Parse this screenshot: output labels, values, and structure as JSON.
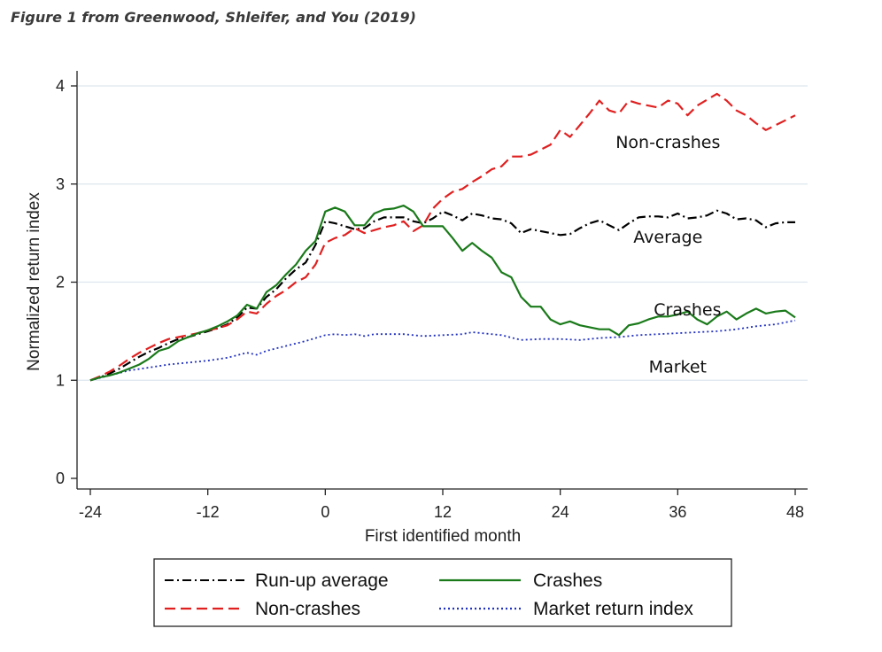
{
  "caption": "Figure 1 from Greenwood, Shleifer, and You (2019)",
  "chart_data": {
    "type": "line",
    "title": "",
    "xlabel": "First identified month",
    "ylabel": "Normalized return index",
    "xlim": [
      -24,
      48
    ],
    "ylim": [
      0,
      4
    ],
    "xticks": [
      -24,
      -12,
      0,
      12,
      24,
      36,
      48
    ],
    "yticks": [
      0,
      1,
      2,
      3,
      4
    ],
    "grid": "horizontal",
    "legend_position": "bottom",
    "annotations": [
      {
        "text": "Non-crashes",
        "x": 35,
        "y": 3.37
      },
      {
        "text": "Average",
        "x": 35,
        "y": 2.4
      },
      {
        "text": "Crashes",
        "x": 37,
        "y": 1.66
      },
      {
        "text": "Market",
        "x": 36,
        "y": 1.08
      }
    ],
    "series": [
      {
        "name": "Run-up average",
        "color": "#000000",
        "dash": "10,4,2,4",
        "x": [
          -24,
          -23,
          -22,
          -21,
          -20,
          -19,
          -18,
          -17,
          -16,
          -15,
          -14,
          -13,
          -12,
          -11,
          -10,
          -9,
          -8,
          -7,
          -6,
          -5,
          -4,
          -3,
          -2,
          -1,
          0,
          1,
          2,
          3,
          4,
          5,
          6,
          7,
          8,
          9,
          10,
          11,
          12,
          13,
          14,
          15,
          16,
          17,
          18,
          19,
          20,
          21,
          22,
          23,
          24,
          25,
          26,
          27,
          28,
          29,
          30,
          31,
          32,
          33,
          34,
          35,
          36,
          37,
          38,
          39,
          40,
          41,
          42,
          43,
          44,
          45,
          46,
          47,
          48
        ],
        "y": [
          1.0,
          1.03,
          1.07,
          1.12,
          1.18,
          1.24,
          1.29,
          1.33,
          1.38,
          1.42,
          1.44,
          1.47,
          1.5,
          1.53,
          1.57,
          1.64,
          1.74,
          1.73,
          1.85,
          1.93,
          2.04,
          2.13,
          2.2,
          2.38,
          2.62,
          2.6,
          2.57,
          2.54,
          2.55,
          2.62,
          2.66,
          2.66,
          2.66,
          2.62,
          2.6,
          2.65,
          2.72,
          2.68,
          2.63,
          2.7,
          2.68,
          2.65,
          2.64,
          2.6,
          2.5,
          2.54,
          2.52,
          2.5,
          2.48,
          2.49,
          2.55,
          2.6,
          2.63,
          2.58,
          2.53,
          2.6,
          2.66,
          2.67,
          2.67,
          2.66,
          2.7,
          2.65,
          2.66,
          2.68,
          2.73,
          2.7,
          2.64,
          2.65,
          2.63,
          2.56,
          2.6,
          2.61,
          2.61
        ]
      },
      {
        "name": "Non-crashes",
        "color": "#e02020",
        "dash": "12,6",
        "x": [
          -24,
          -23,
          -22,
          -21,
          -20,
          -19,
          -18,
          -17,
          -16,
          -15,
          -14,
          -13,
          -12,
          -11,
          -10,
          -9,
          -8,
          -7,
          -6,
          -5,
          -4,
          -3,
          -2,
          -1,
          0,
          1,
          2,
          3,
          4,
          5,
          6,
          7,
          8,
          9,
          10,
          11,
          12,
          13,
          14,
          15,
          16,
          17,
          18,
          19,
          20,
          21,
          22,
          23,
          24,
          25,
          26,
          27,
          28,
          29,
          30,
          31,
          32,
          33,
          34,
          35,
          36,
          37,
          38,
          39,
          40,
          41,
          42,
          43,
          44,
          45,
          46,
          47,
          48
        ],
        "y": [
          1.0,
          1.04,
          1.09,
          1.15,
          1.22,
          1.28,
          1.33,
          1.38,
          1.42,
          1.44,
          1.46,
          1.48,
          1.51,
          1.53,
          1.56,
          1.62,
          1.7,
          1.68,
          1.78,
          1.86,
          1.92,
          2.0,
          2.05,
          2.18,
          2.4,
          2.45,
          2.48,
          2.55,
          2.5,
          2.53,
          2.56,
          2.58,
          2.62,
          2.52,
          2.58,
          2.75,
          2.85,
          2.92,
          2.95,
          3.02,
          3.08,
          3.15,
          3.18,
          3.28,
          3.28,
          3.3,
          3.35,
          3.4,
          3.55,
          3.48,
          3.6,
          3.72,
          3.85,
          3.75,
          3.72,
          3.85,
          3.82,
          3.8,
          3.78,
          3.85,
          3.82,
          3.7,
          3.8,
          3.86,
          3.92,
          3.85,
          3.75,
          3.7,
          3.62,
          3.55,
          3.6,
          3.65,
          3.7
        ]
      },
      {
        "name": "Crashes",
        "color": "#1a7a1a",
        "dash": "",
        "x": [
          -24,
          -23,
          -22,
          -21,
          -20,
          -19,
          -18,
          -17,
          -16,
          -15,
          -14,
          -13,
          -12,
          -11,
          -10,
          -9,
          -8,
          -7,
          -6,
          -5,
          -4,
          -3,
          -2,
          -1,
          0,
          1,
          2,
          3,
          4,
          5,
          6,
          7,
          8,
          9,
          10,
          11,
          12,
          13,
          14,
          15,
          16,
          17,
          18,
          19,
          20,
          21,
          22,
          23,
          24,
          25,
          26,
          27,
          28,
          29,
          30,
          31,
          32,
          33,
          34,
          35,
          36,
          37,
          38,
          39,
          40,
          41,
          42,
          43,
          44,
          45,
          46,
          47,
          48
        ],
        "y": [
          1.0,
          1.03,
          1.05,
          1.08,
          1.12,
          1.16,
          1.22,
          1.3,
          1.33,
          1.4,
          1.44,
          1.48,
          1.51,
          1.55,
          1.6,
          1.66,
          1.77,
          1.73,
          1.9,
          1.97,
          2.08,
          2.18,
          2.32,
          2.42,
          2.72,
          2.76,
          2.72,
          2.58,
          2.58,
          2.7,
          2.74,
          2.75,
          2.78,
          2.72,
          2.57,
          2.57,
          2.57,
          2.45,
          2.32,
          2.4,
          2.32,
          2.25,
          2.1,
          2.05,
          1.85,
          1.75,
          1.75,
          1.62,
          1.57,
          1.6,
          1.56,
          1.54,
          1.52,
          1.52,
          1.46,
          1.56,
          1.58,
          1.62,
          1.65,
          1.65,
          1.67,
          1.7,
          1.62,
          1.57,
          1.65,
          1.7,
          1.62,
          1.68,
          1.73,
          1.68,
          1.7,
          1.71,
          1.64
        ]
      },
      {
        "name": "Market return index",
        "color": "#2030c0",
        "dash": "2,3",
        "x": [
          -24,
          -22,
          -20,
          -18,
          -16,
          -14,
          -12,
          -10,
          -8,
          -7,
          -6,
          -4,
          -2,
          0,
          1,
          2,
          3,
          4,
          5,
          6,
          7,
          8,
          10,
          12,
          14,
          15,
          16,
          18,
          20,
          22,
          24,
          26,
          28,
          30,
          32,
          34,
          36,
          38,
          40,
          42,
          44,
          46,
          48
        ],
        "y": [
          1.0,
          1.05,
          1.1,
          1.13,
          1.16,
          1.18,
          1.2,
          1.23,
          1.28,
          1.26,
          1.3,
          1.35,
          1.4,
          1.46,
          1.47,
          1.46,
          1.47,
          1.45,
          1.47,
          1.47,
          1.47,
          1.47,
          1.45,
          1.46,
          1.47,
          1.49,
          1.48,
          1.46,
          1.41,
          1.42,
          1.42,
          1.41,
          1.43,
          1.44,
          1.46,
          1.47,
          1.48,
          1.49,
          1.5,
          1.52,
          1.55,
          1.57,
          1.61
        ]
      }
    ]
  }
}
